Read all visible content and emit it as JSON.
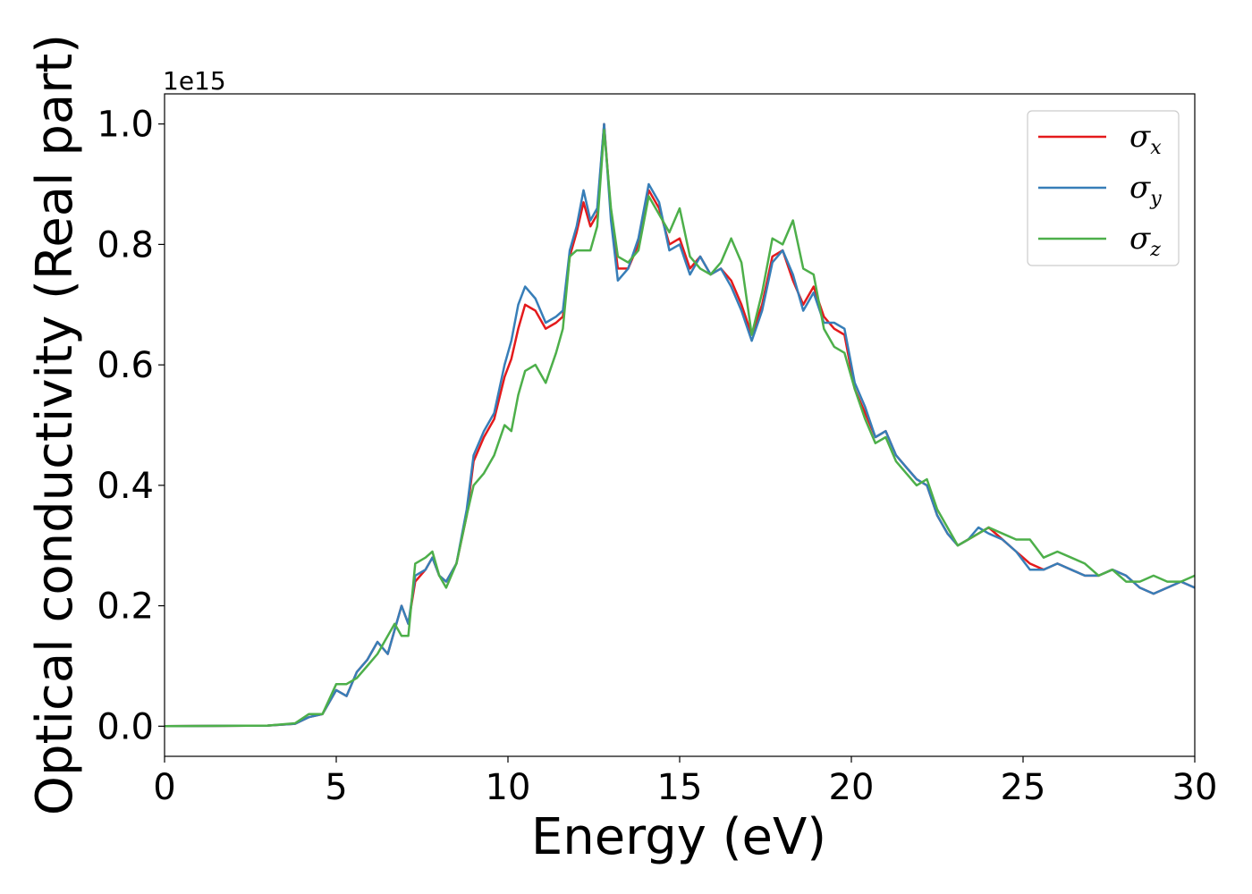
{
  "chart_data": {
    "type": "line",
    "title": "",
    "xlabel": "Energy (eV)",
    "ylabel": "Optical conductivity (Real part)",
    "y_offset_text": "1e15",
    "xlim": [
      0,
      30
    ],
    "ylim": [
      -0.05,
      1.05
    ],
    "xticks": [
      0,
      5,
      10,
      15,
      20,
      25,
      30
    ],
    "xtick_labels": [
      "0",
      "5",
      "10",
      "15",
      "20",
      "25",
      "30"
    ],
    "yticks": [
      0.0,
      0.2,
      0.4,
      0.6,
      0.8,
      1.0
    ],
    "ytick_labels": [
      "0.0",
      "0.2",
      "0.4",
      "0.6",
      "0.8",
      "1.0"
    ],
    "grid": false,
    "legend_position": "top-right",
    "series": [
      {
        "name": "σx",
        "symbol": "σ",
        "sub": "x",
        "color": "#e41a1c",
        "x": [
          0,
          3,
          3.8,
          4.2,
          4.6,
          5.0,
          5.3,
          5.6,
          5.9,
          6.2,
          6.5,
          6.7,
          6.9,
          7.1,
          7.3,
          7.6,
          7.8,
          8.0,
          8.2,
          8.5,
          8.8,
          9.0,
          9.3,
          9.6,
          9.9,
          10.1,
          10.3,
          10.5,
          10.8,
          11.1,
          11.4,
          11.6,
          11.8,
          12.0,
          12.2,
          12.4,
          12.6,
          12.8,
          13.0,
          13.2,
          13.5,
          13.8,
          14.1,
          14.4,
          14.7,
          15.0,
          15.3,
          15.6,
          15.9,
          16.2,
          16.5,
          16.8,
          17.1,
          17.4,
          17.7,
          18.0,
          18.3,
          18.6,
          18.9,
          19.2,
          19.5,
          19.8,
          20.1,
          20.4,
          20.7,
          21.0,
          21.3,
          21.6,
          21.9,
          22.2,
          22.5,
          22.8,
          23.1,
          23.4,
          23.7,
          24.0,
          24.4,
          24.8,
          25.2,
          25.6,
          26.0,
          26.4,
          26.8,
          27.2,
          27.6,
          28.0,
          28.4,
          28.8,
          29.2,
          29.6,
          30.0
        ],
        "y": [
          0.0,
          0.001,
          0.004,
          0.015,
          0.02,
          0.06,
          0.05,
          0.09,
          0.11,
          0.14,
          0.12,
          0.16,
          0.2,
          0.17,
          0.24,
          0.26,
          0.28,
          0.25,
          0.24,
          0.27,
          0.35,
          0.44,
          0.48,
          0.51,
          0.58,
          0.61,
          0.66,
          0.7,
          0.69,
          0.66,
          0.67,
          0.68,
          0.78,
          0.82,
          0.87,
          0.83,
          0.85,
          1.0,
          0.85,
          0.76,
          0.76,
          0.8,
          0.89,
          0.86,
          0.8,
          0.81,
          0.76,
          0.78,
          0.75,
          0.76,
          0.74,
          0.7,
          0.65,
          0.7,
          0.78,
          0.79,
          0.74,
          0.7,
          0.73,
          0.68,
          0.66,
          0.65,
          0.56,
          0.52,
          0.48,
          0.49,
          0.45,
          0.43,
          0.41,
          0.4,
          0.35,
          0.32,
          0.3,
          0.31,
          0.32,
          0.33,
          0.31,
          0.29,
          0.27,
          0.26,
          0.27,
          0.26,
          0.25,
          0.25,
          0.26,
          0.25,
          0.23,
          0.22,
          0.23,
          0.24,
          0.23
        ]
      },
      {
        "name": "σy",
        "symbol": "σ",
        "sub": "y",
        "color": "#377eb8",
        "x": [
          0,
          3,
          3.8,
          4.2,
          4.6,
          5.0,
          5.3,
          5.6,
          5.9,
          6.2,
          6.5,
          6.7,
          6.9,
          7.1,
          7.3,
          7.6,
          7.8,
          8.0,
          8.2,
          8.5,
          8.8,
          9.0,
          9.3,
          9.6,
          9.9,
          10.1,
          10.3,
          10.5,
          10.8,
          11.1,
          11.4,
          11.6,
          11.8,
          12.0,
          12.2,
          12.4,
          12.6,
          12.8,
          13.0,
          13.2,
          13.5,
          13.8,
          14.1,
          14.4,
          14.7,
          15.0,
          15.3,
          15.6,
          15.9,
          16.2,
          16.5,
          16.8,
          17.1,
          17.4,
          17.7,
          18.0,
          18.3,
          18.6,
          18.9,
          19.2,
          19.5,
          19.8,
          20.1,
          20.4,
          20.7,
          21.0,
          21.3,
          21.6,
          21.9,
          22.2,
          22.5,
          22.8,
          23.1,
          23.4,
          23.7,
          24.0,
          24.4,
          24.8,
          25.2,
          25.6,
          26.0,
          26.4,
          26.8,
          27.2,
          27.6,
          28.0,
          28.4,
          28.8,
          29.2,
          29.6,
          30.0
        ],
        "y": [
          0.0,
          0.001,
          0.004,
          0.015,
          0.02,
          0.06,
          0.05,
          0.09,
          0.11,
          0.14,
          0.12,
          0.16,
          0.2,
          0.17,
          0.25,
          0.26,
          0.28,
          0.25,
          0.24,
          0.27,
          0.36,
          0.45,
          0.49,
          0.52,
          0.6,
          0.64,
          0.7,
          0.73,
          0.71,
          0.67,
          0.68,
          0.69,
          0.79,
          0.83,
          0.89,
          0.84,
          0.86,
          1.0,
          0.84,
          0.74,
          0.76,
          0.81,
          0.9,
          0.87,
          0.79,
          0.8,
          0.75,
          0.78,
          0.75,
          0.76,
          0.73,
          0.69,
          0.64,
          0.69,
          0.77,
          0.79,
          0.75,
          0.69,
          0.72,
          0.67,
          0.67,
          0.66,
          0.57,
          0.53,
          0.48,
          0.49,
          0.45,
          0.43,
          0.41,
          0.4,
          0.35,
          0.32,
          0.3,
          0.31,
          0.33,
          0.32,
          0.31,
          0.29,
          0.26,
          0.26,
          0.27,
          0.26,
          0.25,
          0.25,
          0.26,
          0.25,
          0.23,
          0.22,
          0.23,
          0.24,
          0.23
        ]
      },
      {
        "name": "σz",
        "symbol": "σ",
        "sub": "z",
        "color": "#4daf4a",
        "x": [
          0,
          3,
          3.8,
          4.2,
          4.6,
          5.0,
          5.3,
          5.6,
          5.9,
          6.2,
          6.5,
          6.7,
          6.9,
          7.1,
          7.3,
          7.6,
          7.8,
          8.0,
          8.2,
          8.5,
          8.8,
          9.0,
          9.3,
          9.6,
          9.9,
          10.1,
          10.3,
          10.5,
          10.8,
          11.1,
          11.4,
          11.6,
          11.8,
          12.0,
          12.2,
          12.4,
          12.6,
          12.8,
          13.0,
          13.2,
          13.5,
          13.8,
          14.1,
          14.4,
          14.7,
          15.0,
          15.3,
          15.6,
          15.9,
          16.2,
          16.5,
          16.8,
          17.1,
          17.4,
          17.7,
          18.0,
          18.3,
          18.6,
          18.9,
          19.2,
          19.5,
          19.8,
          20.1,
          20.4,
          20.7,
          21.0,
          21.3,
          21.6,
          21.9,
          22.2,
          22.5,
          22.8,
          23.1,
          23.4,
          23.7,
          24.0,
          24.4,
          24.8,
          25.2,
          25.6,
          26.0,
          26.4,
          26.8,
          27.2,
          27.6,
          28.0,
          28.4,
          28.8,
          29.2,
          29.6,
          30.0
        ],
        "y": [
          0.0,
          0.001,
          0.005,
          0.02,
          0.02,
          0.07,
          0.07,
          0.08,
          0.1,
          0.12,
          0.15,
          0.17,
          0.15,
          0.15,
          0.27,
          0.28,
          0.29,
          0.25,
          0.23,
          0.27,
          0.35,
          0.4,
          0.42,
          0.45,
          0.5,
          0.49,
          0.55,
          0.59,
          0.6,
          0.57,
          0.62,
          0.66,
          0.78,
          0.79,
          0.79,
          0.79,
          0.83,
          0.99,
          0.86,
          0.78,
          0.77,
          0.79,
          0.88,
          0.85,
          0.82,
          0.86,
          0.78,
          0.76,
          0.75,
          0.77,
          0.81,
          0.77,
          0.65,
          0.72,
          0.81,
          0.8,
          0.84,
          0.76,
          0.75,
          0.66,
          0.63,
          0.62,
          0.56,
          0.51,
          0.47,
          0.48,
          0.44,
          0.42,
          0.4,
          0.41,
          0.36,
          0.33,
          0.3,
          0.31,
          0.32,
          0.33,
          0.32,
          0.31,
          0.31,
          0.28,
          0.29,
          0.28,
          0.27,
          0.25,
          0.26,
          0.24,
          0.24,
          0.25,
          0.24,
          0.24,
          0.25
        ]
      }
    ]
  }
}
